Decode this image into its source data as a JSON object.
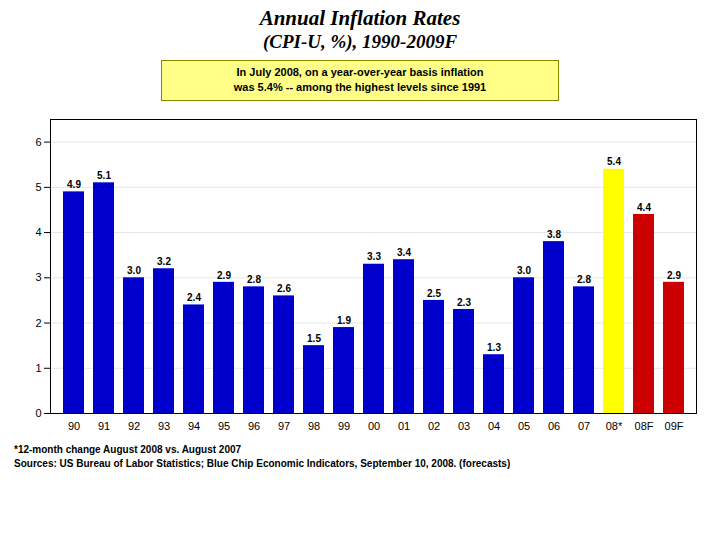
{
  "chart_data": {
    "type": "bar",
    "title": "Annual Inflation Rates",
    "subtitle": "(CPI-U, %), 1990-2009F",
    "categories": [
      "90",
      "91",
      "92",
      "93",
      "94",
      "95",
      "96",
      "97",
      "98",
      "99",
      "00",
      "01",
      "02",
      "03",
      "04",
      "05",
      "06",
      "07",
      "08*",
      "08F",
      "09F"
    ],
    "values": [
      4.9,
      5.1,
      3.0,
      3.2,
      2.4,
      2.9,
      2.8,
      2.6,
      1.5,
      1.9,
      3.3,
      3.4,
      2.5,
      2.3,
      1.3,
      3.0,
      3.8,
      2.8,
      5.4,
      4.4,
      2.9
    ],
    "value_labels": [
      "4.9",
      "5.1",
      "3.0",
      "3.2",
      "2.4",
      "2.9",
      "2.8",
      "2.6",
      "1.5",
      "1.9",
      "3.3",
      "3.4",
      "2.5",
      "2.3",
      "1.3",
      "3.0",
      "3.8",
      "2.8",
      "5.4",
      "4.4",
      "2.9"
    ],
    "colors": [
      "#0000cc",
      "#0000cc",
      "#0000cc",
      "#0000cc",
      "#0000cc",
      "#0000cc",
      "#0000cc",
      "#0000cc",
      "#0000cc",
      "#0000cc",
      "#0000cc",
      "#0000cc",
      "#0000cc",
      "#0000cc",
      "#0000cc",
      "#0000cc",
      "#0000cc",
      "#0000cc",
      "#ffff00",
      "#cc0000",
      "#cc0000"
    ],
    "ylim": [
      0,
      6.5
    ],
    "yticks": [
      0,
      1,
      2,
      3,
      4,
      5,
      6
    ],
    "grid": true,
    "data_labels": true,
    "annotation": "In July 2008, on a year-over-year basis inflation\nwas 5.4% -- among the highest levels since 1991",
    "footnotes": [
      "*12-month change August 2008 vs. August 2007",
      "Sources: US Bureau of Labor Statistics; Blue Chip Economic Indicators, September 10, 2008. (forecasts)"
    ]
  }
}
